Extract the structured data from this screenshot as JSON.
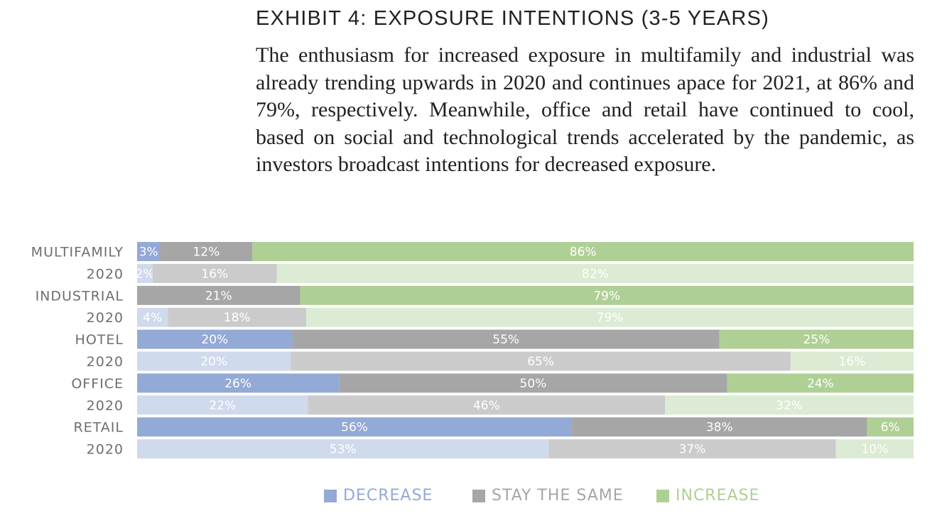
{
  "title": "EXHIBIT 4: EXPOSURE INTENTIONS (3-5 YEARS)",
  "description": "The enthusiasm for increased exposure in multifamily and industrial was already trending upwards in 2020 and continues apace for 2021, at 86% and 79%, respectively. Meanwhile, office and retail have continued to cool, based on social and technological trends accelerated by the pandemic, as investors broadcast intentions for decreased exposure.",
  "legend": {
    "decrease": "DECREASE",
    "stay": "STAY THE SAME",
    "increase": "INCREASE"
  },
  "colors": {
    "decrease": "#93a9d6",
    "stay": "#a6a6a6",
    "increase": "#afd095",
    "decrease_2020": "#cfdaec",
    "stay_2020": "#cbcbcb",
    "increase_2020": "#dcebd3",
    "label": "#6d6e71",
    "title": "#231f20"
  },
  "chart_data": {
    "type": "bar",
    "orientation": "horizontal",
    "stacked": true,
    "normalized": true,
    "categories": [
      "MULTIFAMILY",
      "2020",
      "INDUSTRIAL",
      "2020",
      "HOTEL",
      "2020",
      "OFFICE",
      "2020",
      "RETAIL",
      "2020"
    ],
    "series": [
      {
        "name": "DECREASE",
        "values": [
          3,
          2,
          0,
          4,
          20,
          20,
          26,
          22,
          56,
          53
        ]
      },
      {
        "name": "STAY THE SAME",
        "values": [
          12,
          16,
          21,
          18,
          55,
          65,
          50,
          46,
          38,
          37
        ]
      },
      {
        "name": "INCREASE",
        "values": [
          86,
          82,
          79,
          79,
          25,
          16,
          24,
          32,
          6,
          10
        ]
      }
    ],
    "labels": [
      [
        "3%",
        "12%",
        "86%"
      ],
      [
        "2%",
        "16%",
        "82%"
      ],
      [
        "",
        "21%",
        "79%"
      ],
      [
        "4%",
        "18%",
        "79%"
      ],
      [
        "20%",
        "55%",
        "25%"
      ],
      [
        "20%",
        "65%",
        "16%"
      ],
      [
        "26%",
        "50%",
        "24%"
      ],
      [
        "22%",
        "46%",
        "32%"
      ],
      [
        "56%",
        "38%",
        "6%"
      ],
      [
        "53%",
        "37%",
        "10%"
      ]
    ],
    "previous_year_rows": [
      1,
      3,
      5,
      7,
      9
    ],
    "legend_position": "bottom"
  }
}
